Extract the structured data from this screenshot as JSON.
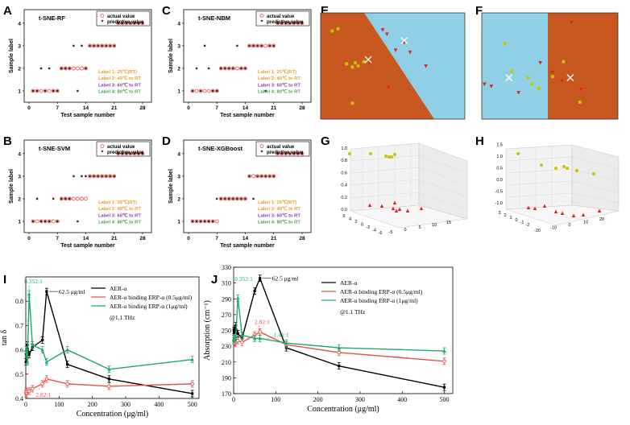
{
  "panel_letters": [
    "A",
    "B",
    "C",
    "D",
    "E",
    "F",
    "G",
    "H",
    "I",
    "J"
  ],
  "colors": {
    "orange_region": "#c8581f",
    "blue_region": "#8fd0e6",
    "yellow_point": "#c9c400",
    "red_point": "#e8201c",
    "black_line": "#000000",
    "red_line": "#e8504a",
    "green_line": "#21a86a",
    "label1": "#e8a020",
    "label2": "#e8a020",
    "label3": "#8a3aa8",
    "label4": "#4aa04a"
  },
  "tsne_legend": {
    "actual": "actual value",
    "predictive": "predictive value"
  },
  "tsne_label_text": [
    "Label 1: 25℃(RT)",
    "Label 2: 40℃ to RT",
    "Label 3: 60℃ to RT",
    "Label 4: 80℃ to RT"
  ],
  "chart_data": [
    {
      "id": "A",
      "type": "scatter",
      "title": "t-SNE-RF",
      "xlabel": "Test sample number",
      "ylabel": "Sample label",
      "xticks": [
        0,
        7,
        14,
        21,
        28
      ],
      "yticks": [
        1,
        2,
        3,
        4
      ],
      "xlim": [
        0,
        29
      ],
      "ylim": [
        0.5,
        4.6
      ],
      "actual": {
        "x": [
          1,
          2,
          3,
          4,
          5,
          6,
          7,
          8,
          9,
          10,
          11,
          12,
          13,
          14,
          15,
          16,
          17,
          18,
          19,
          20,
          21,
          22,
          23,
          24,
          25,
          26,
          27,
          28
        ],
        "y": [
          1,
          1,
          1,
          1,
          1,
          1,
          1,
          2,
          2,
          2,
          2,
          2,
          2,
          2,
          3,
          3,
          3,
          3,
          3,
          3,
          3,
          4,
          4,
          4,
          4,
          4,
          4,
          4
        ]
      },
      "predicted": {
        "x": [
          1,
          2,
          3,
          4,
          5,
          6,
          7,
          8,
          9,
          10,
          11,
          12,
          13,
          14,
          15,
          16,
          17,
          18,
          19,
          20,
          21,
          22,
          23,
          24,
          25,
          26,
          27,
          28
        ],
        "y": [
          1,
          1,
          2,
          1,
          2,
          1,
          1,
          2,
          2,
          2,
          3,
          1,
          3,
          2,
          3,
          3,
          3,
          3,
          3,
          3,
          3,
          4,
          4,
          4,
          4,
          4,
          4,
          4
        ]
      }
    },
    {
      "id": "B",
      "type": "scatter",
      "title": "t-SNE-SVM",
      "xlabel": "Test sample number",
      "ylabel": "Sample label",
      "xticks": [
        0,
        7,
        14,
        21,
        28
      ],
      "yticks": [
        1,
        2,
        3,
        4
      ],
      "xlim": [
        0,
        29
      ],
      "ylim": [
        0.5,
        4.6
      ],
      "actual": {
        "x": [
          1,
          2,
          3,
          4,
          5,
          6,
          7,
          8,
          9,
          10,
          11,
          12,
          13,
          14,
          15,
          16,
          17,
          18,
          19,
          20,
          21,
          22,
          23,
          24,
          25,
          26,
          27,
          28
        ],
        "y": [
          1,
          1,
          1,
          1,
          1,
          1,
          1,
          2,
          2,
          2,
          2,
          2,
          2,
          2,
          3,
          3,
          3,
          3,
          3,
          3,
          3,
          4,
          4,
          4,
          4,
          4,
          4,
          4
        ]
      },
      "predicted": {
        "x": [
          1,
          2,
          3,
          4,
          5,
          6,
          7,
          8,
          9,
          10,
          11,
          12,
          13,
          14,
          15,
          16,
          17,
          18,
          19,
          20,
          21,
          22,
          23,
          24,
          25,
          26,
          27,
          28
        ],
        "y": [
          1,
          2,
          1,
          1,
          1,
          2,
          1,
          2,
          2,
          2,
          3,
          1,
          3,
          3,
          3,
          3,
          3,
          3,
          3,
          3,
          3,
          4,
          4,
          4,
          4,
          4,
          4,
          4
        ]
      }
    },
    {
      "id": "C",
      "type": "scatter",
      "title": "t-SNE-NBM",
      "xlabel": "Test sample number",
      "ylabel": "Sample label",
      "xticks": [
        0,
        7,
        14,
        21,
        28
      ],
      "yticks": [
        1,
        2,
        3,
        4
      ],
      "xlim": [
        0,
        29
      ],
      "ylim": [
        0.5,
        4.6
      ],
      "actual": {
        "x": [
          1,
          2,
          3,
          4,
          5,
          6,
          7,
          8,
          9,
          10,
          11,
          12,
          13,
          14,
          15,
          16,
          17,
          18,
          19,
          20,
          21,
          22,
          23,
          24,
          25,
          26,
          27,
          28
        ],
        "y": [
          1,
          1,
          1,
          1,
          1,
          1,
          1,
          2,
          2,
          2,
          2,
          2,
          2,
          2,
          3,
          3,
          3,
          3,
          3,
          3,
          3,
          4,
          4,
          4,
          4,
          4,
          4,
          4
        ]
      },
      "predicted": {
        "x": [
          1,
          2,
          3,
          4,
          5,
          6,
          7,
          8,
          9,
          10,
          11,
          12,
          13,
          14,
          15,
          16,
          17,
          18,
          19,
          20,
          21,
          22,
          23,
          24,
          25,
          26,
          27,
          28
        ],
        "y": [
          1,
          2,
          1,
          3,
          2,
          1,
          1,
          2,
          2,
          2,
          2,
          3,
          2,
          2,
          3,
          3,
          3,
          3,
          1,
          3,
          3,
          4,
          4,
          4,
          4,
          4,
          4,
          4
        ]
      }
    },
    {
      "id": "D",
      "type": "scatter",
      "title": "t-SNE-XGBoost",
      "xlabel": "Test sample number",
      "ylabel": "Sample label",
      "xticks": [
        0,
        7,
        14,
        21,
        28
      ],
      "yticks": [
        1,
        2,
        3,
        4
      ],
      "xlim": [
        0,
        29
      ],
      "ylim": [
        0.5,
        4.6
      ],
      "actual": {
        "x": [
          1,
          2,
          3,
          4,
          5,
          6,
          7,
          8,
          9,
          10,
          11,
          12,
          13,
          14,
          15,
          16,
          17,
          18,
          19,
          20,
          21,
          22,
          23,
          24,
          25,
          26,
          27,
          28
        ],
        "y": [
          1,
          1,
          1,
          1,
          1,
          1,
          1,
          2,
          2,
          2,
          2,
          2,
          2,
          2,
          3,
          3,
          3,
          3,
          3,
          3,
          3,
          4,
          4,
          4,
          4,
          4,
          4,
          4
        ]
      },
      "predicted": {
        "x": [
          1,
          2,
          3,
          4,
          5,
          6,
          7,
          8,
          9,
          10,
          11,
          12,
          13,
          14,
          15,
          16,
          17,
          18,
          19,
          20,
          21,
          22,
          23,
          24,
          25,
          26,
          27,
          28
        ],
        "y": [
          1,
          1,
          1,
          1,
          1,
          1,
          2,
          2,
          2,
          2,
          2,
          2,
          2,
          2,
          3,
          2,
          3,
          3,
          3,
          3,
          3,
          4,
          4,
          4,
          4,
          4,
          4,
          4
        ]
      }
    },
    {
      "id": "E",
      "type": "scatter",
      "title": "",
      "xlim": [
        0,
        1
      ],
      "ylim": [
        0,
        1
      ],
      "yellow": {
        "x": [
          0.08,
          0.12,
          0.18,
          0.22,
          0.24,
          0.26,
          0.3,
          0.22
        ],
        "y": [
          0.83,
          0.85,
          0.52,
          0.49,
          0.53,
          0.5,
          0.54,
          0.15
        ]
      },
      "red": {
        "x": [
          0.43,
          0.46,
          0.52,
          0.58,
          0.62,
          0.73,
          0.34,
          0.47
        ],
        "y": [
          0.84,
          0.8,
          0.65,
          0.72,
          0.63,
          0.5,
          0.53,
          0.3
        ]
      },
      "cross": {
        "x": [
          0.33,
          0.58
        ],
        "y": [
          0.56,
          0.74
        ]
      }
    },
    {
      "id": "F",
      "type": "scatter",
      "title": "",
      "xlim": [
        0,
        1
      ],
      "ylim": [
        0,
        1
      ],
      "yellow": {
        "x": [
          0.17,
          0.22,
          0.34,
          0.37,
          0.42,
          0.52,
          0.6,
          0.72
        ],
        "y": [
          0.71,
          0.45,
          0.39,
          0.33,
          0.29,
          0.4,
          0.54,
          0.16
        ]
      },
      "red": {
        "x": [
          0.02,
          0.07,
          0.27,
          0.43,
          0.52,
          0.59,
          0.66,
          0.73
        ],
        "y": [
          0.33,
          0.31,
          0.25,
          0.53,
          0.44,
          0.36,
          0.91,
          0.28
        ]
      },
      "cross": {
        "x": [
          0.2,
          0.65
        ],
        "y": [
          0.39,
          0.39
        ]
      }
    },
    {
      "id": "G",
      "type": "scatter",
      "zticks": [
        "0.0",
        "0.2",
        "0.4",
        "0.6",
        "0.8",
        "1.0"
      ],
      "xticks": [
        "-5",
        "0",
        "5",
        "10",
        "15"
      ],
      "yticks": [
        "6",
        "4",
        "2",
        "0",
        "-2",
        "-4",
        "-6"
      ],
      "yellow_count": 6,
      "red_count": 8
    },
    {
      "id": "H",
      "type": "scatter",
      "zticks": [
        "-1.0",
        "-0.5",
        "0.0",
        "0.5",
        "1.0",
        "1.5"
      ],
      "xticks": [
        "-20",
        "-10",
        "0",
        "10",
        "20"
      ],
      "yticks": [
        "3",
        "2",
        "1",
        "0",
        "-1",
        "-2"
      ],
      "yellow_count": 7,
      "red_count": 8
    },
    {
      "id": "I",
      "type": "line",
      "xlabel": "Concentration (μg/ml)",
      "ylabel": "tan δ",
      "xlim": [
        0,
        520
      ],
      "ylim": [
        0.4,
        0.9
      ],
      "xticks": [
        0,
        100,
        200,
        300,
        400,
        500
      ],
      "yticks": [
        0.4,
        0.5,
        0.6,
        0.7,
        0.8
      ],
      "x": [
        0.6,
        1.25,
        2.5,
        5,
        10,
        20,
        50,
        62.5,
        125,
        250,
        500
      ],
      "series": [
        {
          "name": "AER-α",
          "color": "#000000",
          "values": [
            0.55,
            0.58,
            0.56,
            0.62,
            0.58,
            0.61,
            0.64,
            0.84,
            0.54,
            0.48,
            0.42
          ]
        },
        {
          "name": "AER-α binding ERP-α (0.5μg/ml)",
          "color": "#e8504a",
          "values": [
            0.42,
            0.43,
            0.42,
            0.43,
            0.43,
            0.44,
            0.46,
            0.48,
            0.46,
            0.45,
            0.46
          ]
        },
        {
          "name": "AER-α binding ERP-α (1μg/ml)",
          "color": "#21a86a",
          "values": [
            0.6,
            0.59,
            0.58,
            0.55,
            0.83,
            0.62,
            0.6,
            0.55,
            0.6,
            0.52,
            0.56
          ]
        }
      ],
      "annotations": {
        "peak": "62.5 μg/ml",
        "ratio_top": "0.352:1",
        "ratio_bottom": "2.82:1",
        "freq": "@1.1 THz"
      }
    },
    {
      "id": "J",
      "type": "line",
      "xlabel": "Concentration (μg/ml)",
      "ylabel": "Absorption (cm⁻¹)",
      "xlim": [
        0,
        520
      ],
      "ylim": [
        170,
        330
      ],
      "xticks": [
        0,
        100,
        200,
        300,
        400,
        500
      ],
      "yticks": [
        170,
        190,
        210,
        230,
        250,
        270,
        290,
        310,
        330
      ],
      "x": [
        0.6,
        1.25,
        2.5,
        5,
        10,
        20,
        50,
        62.5,
        125,
        250,
        500
      ],
      "series": [
        {
          "name": "AER-α",
          "color": "#000000",
          "values": [
            250,
            248,
            252,
            256,
            246,
            240,
            300,
            316,
            228,
            205,
            178
          ]
        },
        {
          "name": "AER-α binding ERP-α (0.5μg/ml)",
          "color": "#e8504a",
          "values": [
            237,
            236,
            234,
            235,
            237,
            235,
            244,
            248,
            232,
            222,
            211
          ]
        },
        {
          "name": "AER-α binding ERP-α (1μg/ml)",
          "color": "#21a86a",
          "values": [
            240,
            238,
            239,
            240,
            291,
            244,
            240,
            240,
            234,
            228,
            224
          ]
        }
      ],
      "annotations": {
        "peak": "62.5 μg/ml",
        "ratio_top": "0.352:1",
        "ratio_mid": "2.82:1",
        "ratio_right": "1.41:1",
        "freq": "@1.1 THz"
      }
    }
  ]
}
